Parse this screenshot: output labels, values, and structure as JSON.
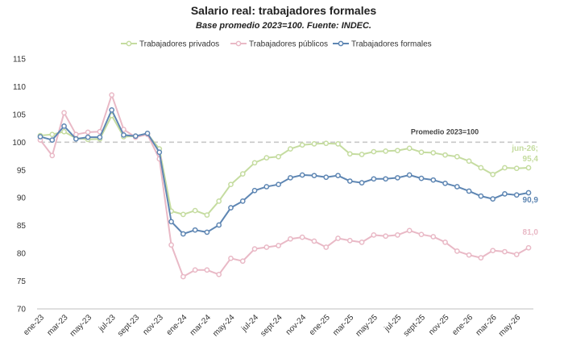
{
  "chart_data": {
    "type": "line",
    "title": "Salario real: trabajadores formales",
    "subtitle": "Base promedio 2023=100. Fuente: INDEC.",
    "ylim": [
      70,
      115
    ],
    "yticks": [
      70,
      75,
      80,
      85,
      90,
      95,
      100,
      105,
      110,
      115
    ],
    "grid": false,
    "legend_position": "top",
    "x": [
      "ene-23",
      "feb-23",
      "mar-23",
      "abr-23",
      "may-23",
      "jun-23",
      "jul-23",
      "ago-23",
      "sept-23",
      "oct-23",
      "nov-23",
      "dic-23",
      "ene-24",
      "feb-24",
      "mar-24",
      "abr-24",
      "may-24",
      "jun-24",
      "jul-24",
      "ago-24",
      "sept-24",
      "oct-24",
      "nov-24",
      "dic-24",
      "ene-25",
      "feb-25",
      "mar-25",
      "abr-25",
      "may-25",
      "jun-25",
      "jul-25",
      "ago-25",
      "sept-25",
      "oct-25",
      "nov-25",
      "dic-25",
      "ene-26",
      "feb-26",
      "mar-26",
      "abr-26",
      "may-26",
      "jun-26"
    ],
    "xtick_labels": [
      "ene-23",
      "mar-23",
      "may-23",
      "jul-23",
      "sept-23",
      "nov-23",
      "ene-24",
      "mar-24",
      "may-24",
      "jul-24",
      "sept-24",
      "nov-24",
      "ene-25",
      "mar-25",
      "may-25",
      "jul-25",
      "sept-25",
      "nov-25",
      "ene-26",
      "mar-26",
      "may-26"
    ],
    "series": [
      {
        "name": "Trabajadores privados",
        "color": "#c5dca0",
        "values": [
          101.2,
          101.4,
          101.9,
          100.7,
          100.5,
          100.6,
          104.8,
          101.0,
          101.1,
          101.5,
          98.8,
          87.6,
          87.0,
          87.7,
          86.9,
          89.4,
          92.4,
          94.3,
          96.3,
          97.2,
          97.4,
          98.8,
          99.5,
          99.7,
          99.8,
          99.7,
          97.9,
          97.8,
          98.3,
          98.4,
          98.5,
          98.9,
          98.2,
          98.1,
          97.7,
          97.4,
          96.6,
          95.4,
          94.2,
          95.4,
          95.3,
          95.4
        ]
      },
      {
        "name": "Trabajadores públicos",
        "color": "#e9b9c6",
        "values": [
          100.4,
          97.6,
          105.3,
          101.4,
          101.8,
          101.9,
          108.5,
          102.3,
          100.9,
          101.4,
          97.0,
          81.5,
          75.8,
          77.0,
          77.0,
          76.2,
          79.1,
          78.6,
          80.8,
          81.1,
          81.4,
          82.6,
          82.9,
          82.2,
          81.1,
          82.7,
          82.3,
          82.0,
          83.3,
          83.1,
          83.3,
          84.1,
          83.4,
          83.0,
          82.0,
          80.4,
          79.7,
          79.2,
          80.5,
          80.3,
          79.8,
          81.0
        ]
      },
      {
        "name": "Trabajadores formales",
        "color": "#5e86b3",
        "values": [
          101.0,
          100.4,
          102.9,
          100.6,
          100.9,
          100.9,
          105.8,
          101.3,
          101.1,
          101.6,
          98.2,
          85.7,
          83.5,
          84.2,
          83.8,
          85.1,
          88.2,
          89.4,
          91.3,
          92.0,
          92.4,
          93.6,
          94.1,
          94.0,
          93.7,
          94.0,
          93.0,
          92.7,
          93.4,
          93.4,
          93.6,
          94.1,
          93.5,
          93.2,
          92.6,
          92.0,
          91.2,
          90.3,
          89.8,
          90.7,
          90.5,
          90.9
        ]
      }
    ],
    "reference_line": {
      "value": 100,
      "label": "Promedio 2023=100"
    },
    "end_labels": [
      {
        "series": "Trabajadores privados",
        "lines": [
          "jun-26;",
          "95,4"
        ]
      },
      {
        "series": "Trabajadores formales",
        "lines": [
          "90,9"
        ]
      },
      {
        "series": "Trabajadores públicos",
        "lines": [
          "81,0"
        ]
      }
    ]
  }
}
